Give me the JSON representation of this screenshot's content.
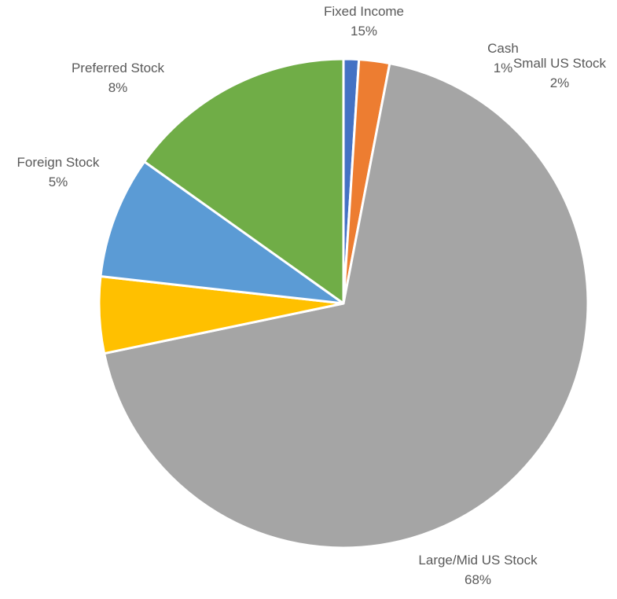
{
  "chart_data": {
    "type": "pie",
    "title": "",
    "slices": [
      {
        "label": "Cash",
        "value_label": "1%",
        "value": 1,
        "color": "#4472C4"
      },
      {
        "label": "Small US Stock",
        "value_label": "2%",
        "value": 2,
        "color": "#ED7D31"
      },
      {
        "label": "Large/Mid US Stock",
        "value_label": "68%",
        "value": 68,
        "color": "#A5A5A5"
      },
      {
        "label": "Foreign Stock",
        "value_label": "5%",
        "value": 5,
        "color": "#FFC000"
      },
      {
        "label": "Preferred Stock",
        "value_label": "8%",
        "value": 8,
        "color": "#5B9BD5"
      },
      {
        "label": "Fixed Income",
        "value_label": "15%",
        "value": 15,
        "color": "#70AD47"
      }
    ],
    "start_angle_deg": 0,
    "direction": "clockwise",
    "legend": "none",
    "data_labels": "outside"
  }
}
